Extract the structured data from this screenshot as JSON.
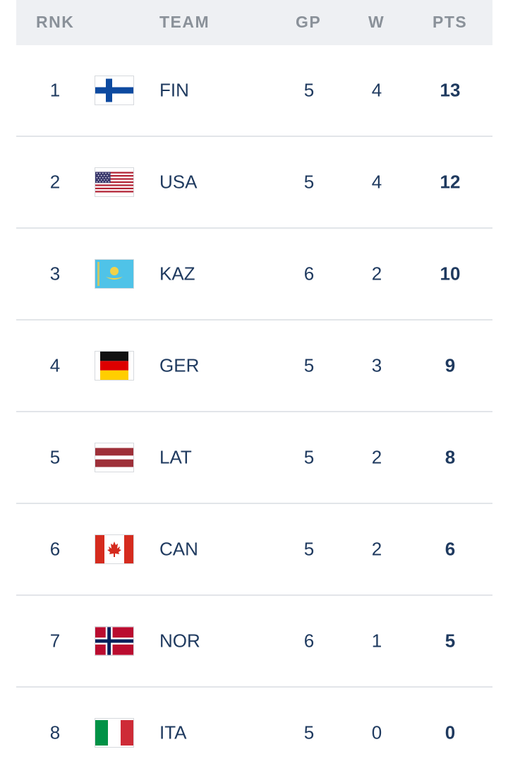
{
  "header": {
    "rank": "RNK",
    "team": "TEAM",
    "gp": "GP",
    "w": "W",
    "pts": "PTS"
  },
  "rows": [
    {
      "rank": "1",
      "team": "FIN",
      "flag": "finland-flag-icon",
      "gp": "5",
      "w": "4",
      "pts": "13"
    },
    {
      "rank": "2",
      "team": "USA",
      "flag": "usa-flag-icon",
      "gp": "5",
      "w": "4",
      "pts": "12"
    },
    {
      "rank": "3",
      "team": "KAZ",
      "flag": "kazakhstan-flag-icon",
      "gp": "6",
      "w": "2",
      "pts": "10"
    },
    {
      "rank": "4",
      "team": "GER",
      "flag": "germany-flag-icon",
      "gp": "5",
      "w": "3",
      "pts": "9"
    },
    {
      "rank": "5",
      "team": "LAT",
      "flag": "latvia-flag-icon",
      "gp": "5",
      "w": "2",
      "pts": "8"
    },
    {
      "rank": "6",
      "team": "CAN",
      "flag": "canada-flag-icon",
      "gp": "5",
      "w": "2",
      "pts": "6"
    },
    {
      "rank": "7",
      "team": "NOR",
      "flag": "norway-flag-icon",
      "gp": "6",
      "w": "1",
      "pts": "5"
    },
    {
      "rank": "8",
      "team": "ITA",
      "flag": "italy-flag-icon",
      "gp": "5",
      "w": "0",
      "pts": "0"
    }
  ],
  "colors": {
    "header_bg": "#eef0f3",
    "header_text": "#8a9199",
    "body_text": "#1f3a5f",
    "divider": "#e2e5e9"
  }
}
